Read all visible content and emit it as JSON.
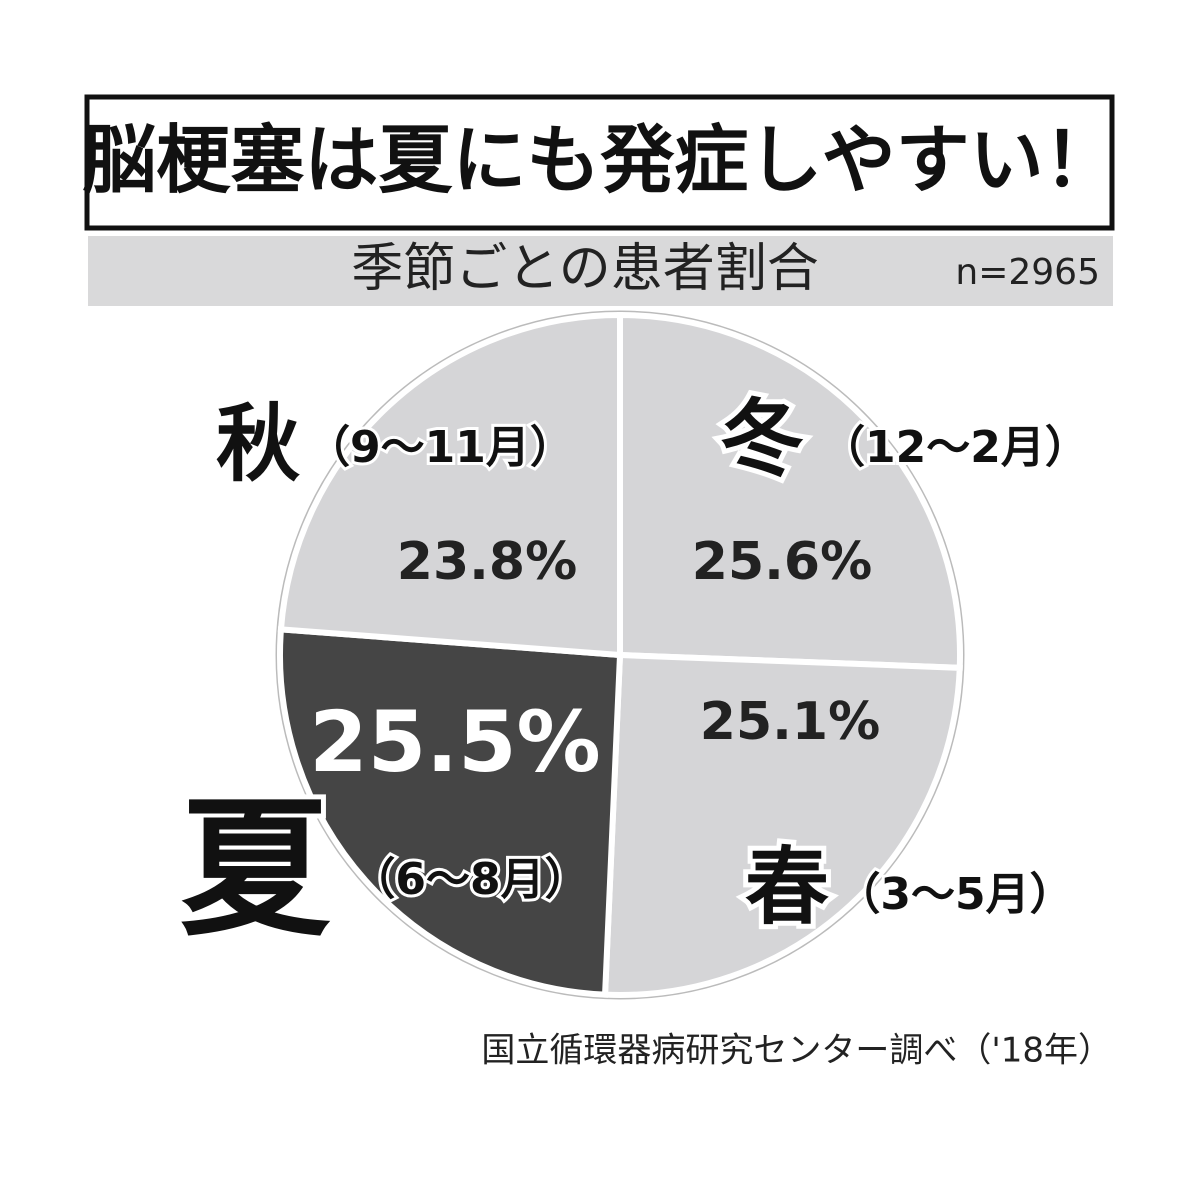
{
  "chart_data": {
    "type": "pie",
    "title": "脳梗塞は夏にも発症しやすい！",
    "subtitle": "季節ごとの患者割合",
    "sample_size": "n=2965",
    "source": "国立循環器病研究センター調べ（'18年）",
    "categories": [
      "冬",
      "春",
      "夏",
      "秋"
    ],
    "periods": [
      "（12〜2月）",
      "（3〜5月）",
      "（6〜8月）",
      "（9〜11月）"
    ],
    "values": [
      25.6,
      25.1,
      25.5,
      23.8
    ],
    "value_labels": [
      "25.6%",
      "25.1%",
      "25.5%",
      "23.8%"
    ],
    "colors": [
      "#d5d5d7",
      "#d5d5d7",
      "#454545",
      "#d5d5d7"
    ]
  }
}
